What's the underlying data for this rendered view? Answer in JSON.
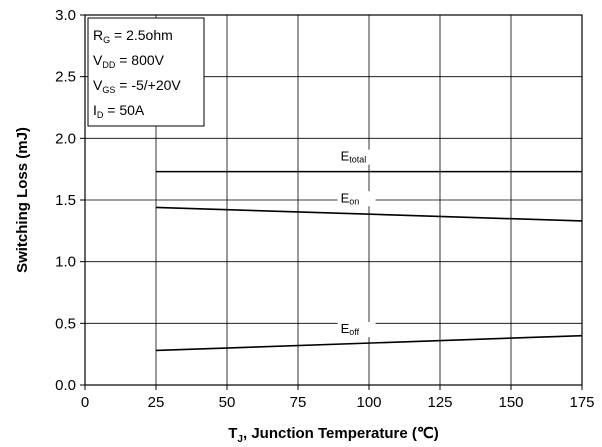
{
  "chart_data": {
    "type": "line",
    "xlabel": {
      "main": "T",
      "sub": "J",
      "rest": ", Junction Temperature (℃)"
    },
    "ylabel": "Switching Loss (mJ)",
    "xlim": [
      0,
      175
    ],
    "ylim": [
      0.0,
      3.0
    ],
    "x_ticks": [
      0,
      25,
      50,
      75,
      100,
      125,
      150,
      175
    ],
    "x_tick_labels": [
      "0",
      "25",
      "50",
      "75",
      "100",
      "125",
      "150",
      "175"
    ],
    "y_ticks": [
      0.0,
      0.5,
      1.0,
      1.5,
      2.0,
      2.5,
      3.0
    ],
    "y_tick_labels": [
      "0.0",
      "0.5",
      "1.0",
      "1.5",
      "2.0",
      "2.5",
      "3.0"
    ],
    "grid": true,
    "conditions": [
      {
        "main": "R",
        "sub": "G",
        "rest": " = 2.5ohm"
      },
      {
        "main": "V",
        "sub": "DD",
        "rest": " = 800V"
      },
      {
        "main": "V",
        "sub": "GS",
        "rest": " = -5/+20V"
      },
      {
        "main": "I",
        "sub": "D",
        "rest": " = 50A"
      }
    ],
    "series": [
      {
        "name": {
          "main": "E",
          "sub": "total"
        },
        "x": [
          25,
          175
        ],
        "y": [
          1.73,
          1.73
        ],
        "label_x": 90
      },
      {
        "name": {
          "main": "E",
          "sub": "on"
        },
        "x": [
          25,
          175
        ],
        "y": [
          1.44,
          1.33
        ],
        "label_x": 90
      },
      {
        "name": {
          "main": "E",
          "sub": "off"
        },
        "x": [
          25,
          175
        ],
        "y": [
          0.28,
          0.4
        ],
        "label_x": 90
      }
    ]
  }
}
